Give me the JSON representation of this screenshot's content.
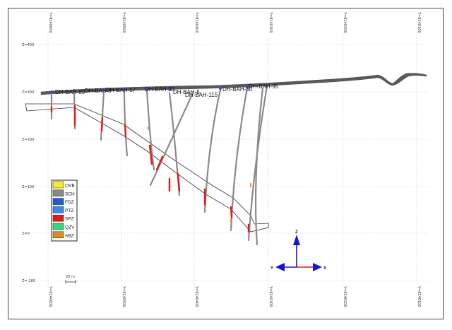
{
  "section": {
    "z_labels": [
      "Z=400",
      "Z=300",
      "Z=200",
      "Z=100",
      "Z=0",
      "Z=-100"
    ],
    "y_labels": [
      "Y=8140600",
      "Y=8140500",
      "Y=8140400",
      "Y=8140300",
      "Y=8140200",
      "Y=8140100"
    ],
    "hole_labels": [
      "DH-BAH-89",
      "DH-BAH-9",
      "DH-BAH-57",
      "DH-BAH-58",
      "DH-BAH-5",
      "DH-BAH-115",
      "DH-BAH-30",
      "DH-BAH-95"
    ]
  },
  "legend": {
    "items": [
      {
        "code": "OVB",
        "color": "#f6ee1a"
      },
      {
        "code": "SCH",
        "color": "#888888"
      },
      {
        "code": "FDZ",
        "color": "#1a5fd6"
      },
      {
        "code": "PTZ",
        "color": "#2f8df0"
      },
      {
        "code": "SPZ",
        "color": "#e81818"
      },
      {
        "code": "QZV",
        "color": "#27e07a"
      },
      {
        "code": "ABZ",
        "color": "#e58a1e"
      }
    ]
  },
  "scale_bar": {
    "label": "20 m"
  },
  "axes_widget": {
    "z": "Z",
    "y": "Y",
    "x": "X"
  },
  "colors": {
    "terrain": "#555555",
    "hole": "#8a8a8a",
    "spz": "#e81818",
    "collar": "#3050c8",
    "axis_blue": "#1515d8",
    "axis_red": "#d81818"
  }
}
